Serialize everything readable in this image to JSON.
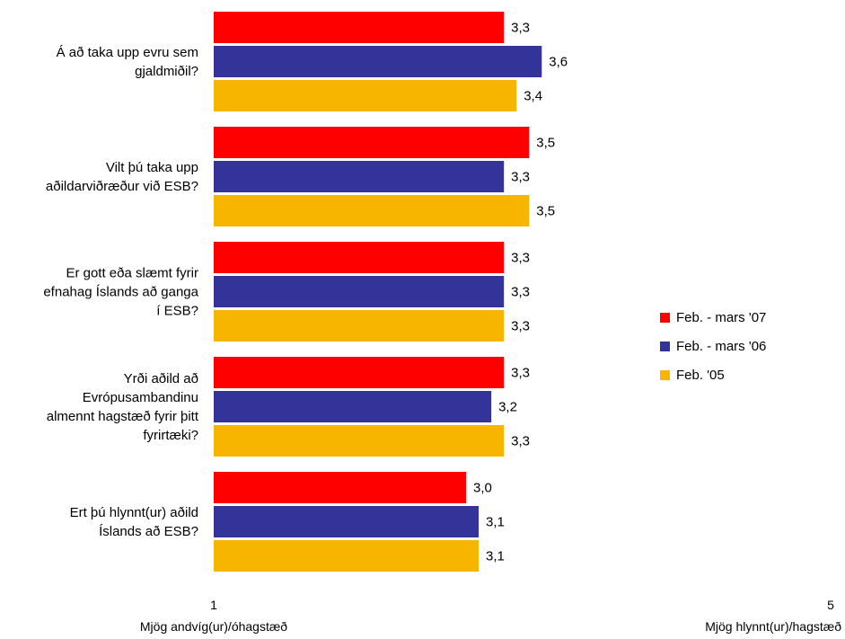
{
  "chart_data": {
    "type": "bar",
    "orientation": "horizontal",
    "categories": [
      [
        "Á að taka upp evru sem",
        "gjaldmiðil?"
      ],
      [
        "Vilt þú taka upp",
        "aðildarviðræður við ESB?"
      ],
      [
        "Er gott eða slæmt fyrir",
        "efnahag Íslands að ganga",
        "í ESB?"
      ],
      [
        "Yrði aðild að",
        "Evrópusambandinu",
        "almennt hagstæð fyrir þitt",
        "fyrirtæki?"
      ],
      [
        "Ert þú hlynnt(ur) aðild",
        "Íslands að ESB?"
      ]
    ],
    "series": [
      {
        "name": "Feb. - mars '07",
        "color": "#ff0000",
        "values": [
          3.3,
          3.5,
          3.3,
          3.3,
          3.0
        ],
        "labels": [
          "3,3",
          "3,5",
          "3,3",
          "3,3",
          "3,0"
        ]
      },
      {
        "name": "Feb. - mars '06",
        "color": "#333399",
        "values": [
          3.6,
          3.3,
          3.3,
          3.2,
          3.1
        ],
        "labels": [
          "3,6",
          "3,3",
          "3,3",
          "3,2",
          "3,1"
        ]
      },
      {
        "name": "Feb. '05",
        "color": "#f7b500",
        "values": [
          3.4,
          3.5,
          3.3,
          3.3,
          3.1
        ],
        "labels": [
          "3,4",
          "3,5",
          "3,3",
          "3,3",
          "3,1"
        ]
      }
    ],
    "xlim": [
      1,
      5
    ],
    "axis": {
      "min_label": "1",
      "max_label": "5",
      "min_caption": "Mjög andvíg(ur)/óhagstæð",
      "max_caption": "Mjög hlynnt(ur)/hagstæð"
    },
    "legend_position": "right",
    "grid": false
  }
}
